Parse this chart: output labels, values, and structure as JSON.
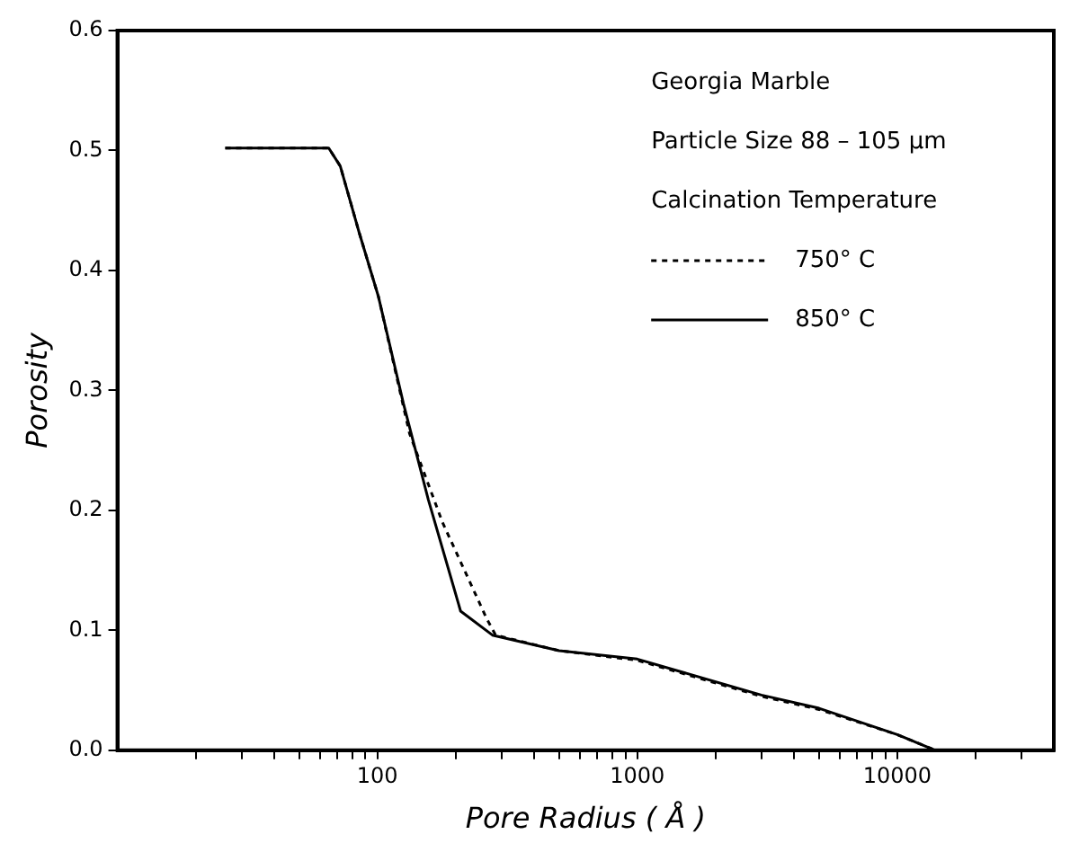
{
  "chart_data": {
    "type": "line",
    "xlabel": "Pore Radius ( Å )",
    "ylabel": "Porosity",
    "log": "x",
    "legend": "top right",
    "legend_title": "Calcination Temperature",
    "annotations": [
      "Georgia Marble",
      "Particle Size 88 – 105 μm"
    ],
    "xlim": [
      10,
      40000
    ],
    "ylim": [
      0,
      0.6
    ],
    "xticks": [
      {
        "value": 20,
        "label": null
      },
      {
        "value": 30,
        "label": null
      },
      {
        "value": 40,
        "label": null
      },
      {
        "value": 50,
        "label": null
      },
      {
        "value": 60,
        "label": null
      },
      {
        "value": 70,
        "label": null
      },
      {
        "value": 80,
        "label": null
      },
      {
        "value": 90,
        "label": null
      },
      100,
      {
        "value": 200,
        "label": null
      },
      {
        "value": 300,
        "label": null
      },
      {
        "value": 400,
        "label": null
      },
      {
        "value": 500,
        "label": null
      },
      {
        "value": 600,
        "label": null
      },
      {
        "value": 700,
        "label": null
      },
      {
        "value": 800,
        "label": null
      },
      {
        "value": 900,
        "label": null
      },
      1000,
      {
        "value": 2000,
        "label": null
      },
      {
        "value": 3000,
        "label": null
      },
      {
        "value": 4000,
        "label": null
      },
      {
        "value": 5000,
        "label": null
      },
      {
        "value": 6000,
        "label": null
      },
      {
        "value": 7000,
        "label": null
      },
      {
        "value": 8000,
        "label": null
      },
      {
        "value": 9000,
        "label": null
      },
      10000,
      {
        "value": 20000,
        "label": null
      },
      {
        "value": 30000,
        "label": null
      }
    ],
    "yticks": [
      {
        "value": 0,
        "label": "0.0"
      },
      {
        "value": 0.1,
        "label": "0.1"
      },
      {
        "value": 0.2,
        "label": "0.2"
      },
      {
        "value": 0.3,
        "label": "0.3"
      },
      {
        "value": 0.4,
        "label": "0.4"
      },
      {
        "value": 0.5,
        "label": "0.5"
      },
      {
        "value": 0.6,
        "label": "0.6"
      }
    ],
    "series": [
      {
        "name": "750° C",
        "color": "#000000",
        "line_style": "dotted",
        "x": [
          26,
          65,
          72,
          85,
          101,
          133,
          178,
          263,
          285,
          500,
          1000,
          3000,
          5000,
          10000,
          14000
        ],
        "values": [
          0.502,
          0.502,
          0.487,
          0.432,
          0.378,
          0.264,
          0.19,
          0.11,
          0.096,
          0.083,
          0.075,
          0.045,
          0.034,
          0.013,
          0
        ]
      },
      {
        "name": "850° C",
        "color": "#000000",
        "line_style": "solid",
        "x": [
          26,
          65,
          72,
          85,
          101,
          126,
          157,
          209,
          277,
          500,
          1000,
          3000,
          5000,
          10000,
          14000
        ],
        "values": [
          0.502,
          0.502,
          0.487,
          0.432,
          0.378,
          0.289,
          0.209,
          0.116,
          0.096,
          0.083,
          0.076,
          0.046,
          0.035,
          0.013,
          0
        ]
      }
    ]
  }
}
